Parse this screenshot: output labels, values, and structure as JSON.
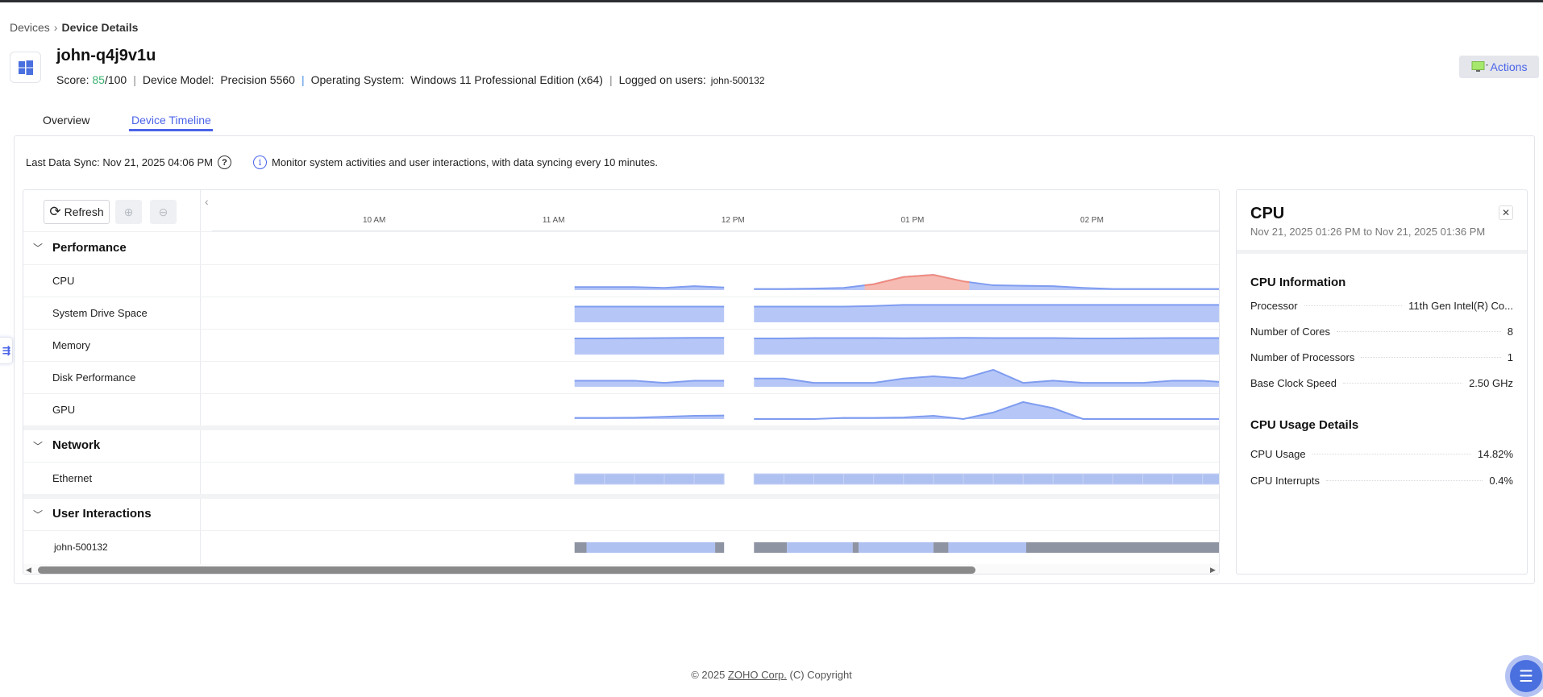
{
  "breadcrumb": {
    "parent": "Devices",
    "current": "Device Details"
  },
  "device": {
    "name": "john-q4j9v1u",
    "score_label": "Score:",
    "score": "85",
    "score_max": "/100",
    "model_label": "Device Model:",
    "model": "Precision 5560",
    "os_label": "Operating System:",
    "os": "Windows 11 Professional Edition (x64)",
    "users_label": "Logged on users:",
    "users": "john-500132",
    "icon": "windows-logo-icon"
  },
  "actions": {
    "label": "Actions",
    "icon": "monitor-icon"
  },
  "tabs": [
    {
      "label": "Overview"
    },
    {
      "label": "Device Timeline",
      "active": true
    }
  ],
  "sync": {
    "text": "Last Data Sync: Nov 21, 2025 04:06 PM",
    "help": "?"
  },
  "note": {
    "text": "Monitor system activities and user interactions, with data syncing every 10 minutes."
  },
  "toolbar": {
    "refresh": "Refresh"
  },
  "groups": {
    "performance": "Performance",
    "network": "Network",
    "user_interactions": "User Interactions"
  },
  "rows": {
    "cpu": "CPU",
    "drive": "System Drive Space",
    "memory": "Memory",
    "disk": "Disk Performance",
    "gpu": "GPU",
    "ethernet": "Ethernet",
    "user": "john-500132"
  },
  "colors": {
    "accent": "#4a63e8",
    "area_fill": "#b6c7f7",
    "area_line": "#7f9cf0",
    "alert_fill": "#f6bcb4",
    "alert_line": "#f08a7e",
    "idle": "#8f94a3",
    "active": "#afc1f1"
  },
  "chart_data": {
    "type": "area",
    "x_range": [
      "09:02",
      "14:43"
    ],
    "ticks": [
      {
        "t": "10:00",
        "label": "10 AM"
      },
      {
        "t": "11:00",
        "label": "11 AM"
      },
      {
        "t": "12:00",
        "label": "12 PM"
      },
      {
        "t": "13:00",
        "label": "01 PM"
      },
      {
        "t": "14:00",
        "label": "02 PM"
      }
    ],
    "interval_minutes": 10,
    "segment_starts": [
      "11:07",
      "12:07"
    ],
    "series": {
      "cpu": [
        [
          14,
          14,
          14,
          10,
          18,
          12
        ],
        [
          5,
          5,
          7,
          10,
          27,
          60,
          70,
          40,
          22,
          20,
          18,
          10,
          5,
          5,
          5,
          5,
          5
        ]
      ],
      "drive": [
        [
          72,
          72,
          72,
          72,
          72,
          72
        ],
        [
          72,
          72,
          72,
          72,
          75,
          80,
          80,
          80,
          80,
          80,
          80,
          80,
          80,
          80,
          80,
          80,
          80
        ]
      ],
      "memory": [
        [
          74,
          74,
          75,
          76,
          77,
          77
        ],
        [
          74,
          74,
          76,
          76,
          76,
          75,
          76,
          77,
          76,
          76,
          76,
          74,
          74,
          75,
          76,
          76,
          76
        ]
      ],
      "disk": [
        [
          28,
          28,
          28,
          18,
          28,
          28
        ],
        [
          38,
          38,
          18,
          18,
          18,
          38,
          48,
          38,
          78,
          18,
          28,
          18,
          18,
          18,
          28,
          28,
          18
        ]
      ],
      "gpu": [
        [
          5,
          5,
          6,
          10,
          15,
          16
        ],
        [
          0,
          0,
          0,
          5,
          5,
          7,
          15,
          0,
          30,
          78,
          50,
          0,
          0,
          0,
          0,
          0,
          0
        ]
      ]
    },
    "cpu_alert_range": [
      "12:44",
      "13:19"
    ],
    "ethernet": [
      [
        "11:07",
        "11:57"
      ],
      [
        "12:07",
        "14:50"
      ]
    ],
    "user_sessions": [
      {
        "start": "11:07",
        "end": "11:11",
        "state": "idle"
      },
      {
        "start": "11:11",
        "end": "11:54",
        "state": "active"
      },
      {
        "start": "11:54",
        "end": "11:57",
        "state": "idle"
      },
      {
        "start": "12:07",
        "end": "12:18",
        "state": "idle"
      },
      {
        "start": "12:18",
        "end": "12:40",
        "state": "active"
      },
      {
        "start": "12:40",
        "end": "12:42",
        "state": "idle"
      },
      {
        "start": "12:42",
        "end": "13:07",
        "state": "active"
      },
      {
        "start": "13:07",
        "end": "13:12",
        "state": "idle"
      },
      {
        "start": "13:12",
        "end": "13:38",
        "state": "active"
      },
      {
        "start": "13:38",
        "end": "14:50",
        "state": "idle"
      }
    ]
  },
  "details": {
    "title": "CPU",
    "range": "Nov 21, 2025 01:26 PM to Nov 21, 2025 01:36 PM",
    "info_title": "CPU Information",
    "info": [
      {
        "k": "Processor",
        "v": "11th Gen Intel(R) Co..."
      },
      {
        "k": "Number of Cores",
        "v": "8"
      },
      {
        "k": "Number of Processors",
        "v": "1"
      },
      {
        "k": "Base Clock Speed",
        "v": "2.50 GHz"
      }
    ],
    "usage_title": "CPU Usage Details",
    "usage": [
      {
        "k": "CPU Usage",
        "v": "14.82%"
      },
      {
        "k": "CPU Interrupts",
        "v": "0.4%"
      }
    ]
  },
  "footer": {
    "prefix": "© 2025 ",
    "link": "ZOHO Corp.",
    "suffix": " (C) Copyright"
  }
}
